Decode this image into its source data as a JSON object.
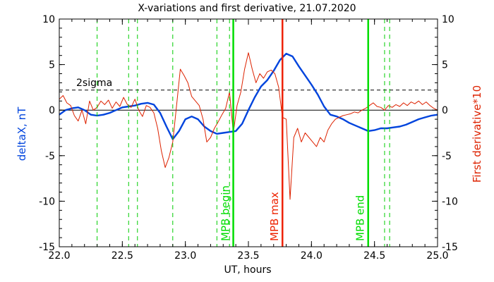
{
  "chart_data": {
    "type": "line",
    "title": "X-variations and first derivative, 21.07.2020",
    "xlabel": "UT, hours",
    "ylabel_left": "deltaX, nT",
    "ylabel_right": "First derivative*10",
    "xlim": [
      22.0,
      25.0
    ],
    "ylim": [
      -15,
      10
    ],
    "x_ticks": [
      22.0,
      22.5,
      23.0,
      23.5,
      24.0,
      24.5,
      25.0
    ],
    "x_tick_labels": [
      "22.0",
      "22.5",
      "23.0",
      "23.5",
      "24.0",
      "24.5",
      "25.0"
    ],
    "y_ticks": [
      -15,
      -10,
      -5,
      0,
      5,
      10
    ],
    "y_tick_labels": [
      "-15",
      "-10",
      "-5",
      "0",
      "5",
      "10"
    ],
    "zero_line": 0,
    "threshold": {
      "label": "2sigma",
      "value": 2.2
    },
    "dashed_markers": [
      22.3,
      22.55,
      22.62,
      22.9,
      23.25,
      23.35,
      24.58,
      24.62
    ],
    "markers": [
      {
        "label": "MPB begin",
        "x": 23.38,
        "color": "#00dd00"
      },
      {
        "label": "MPB max",
        "x": 23.77,
        "color": "#ee2200"
      },
      {
        "label": "MPB end",
        "x": 24.45,
        "color": "#00dd00"
      }
    ],
    "colors": {
      "deltaX": "#0044dd",
      "derivative": "#dd2200",
      "markers_dashed": "#00cc00"
    },
    "series": [
      {
        "name": "deltaX, nT",
        "axis": "left",
        "x": [
          22.0,
          22.05,
          22.1,
          22.15,
          22.2,
          22.25,
          22.3,
          22.35,
          22.4,
          22.45,
          22.5,
          22.55,
          22.6,
          22.65,
          22.7,
          22.75,
          22.8,
          22.85,
          22.9,
          22.95,
          23.0,
          23.05,
          23.1,
          23.15,
          23.2,
          23.25,
          23.3,
          23.35,
          23.4,
          23.45,
          23.5,
          23.55,
          23.6,
          23.65,
          23.7,
          23.75,
          23.8,
          23.85,
          23.9,
          23.95,
          24.0,
          24.05,
          24.1,
          24.15,
          24.2,
          24.25,
          24.3,
          24.35,
          24.4,
          24.45,
          24.5,
          24.55,
          24.6,
          24.65,
          24.7,
          24.75,
          24.8,
          24.85,
          24.9,
          24.95,
          25.0
        ],
        "values": [
          -0.5,
          0.0,
          0.2,
          0.3,
          0.0,
          -0.5,
          -0.6,
          -0.5,
          -0.3,
          0.0,
          0.3,
          0.4,
          0.5,
          0.7,
          0.8,
          0.6,
          -0.3,
          -1.8,
          -3.2,
          -2.3,
          -1.0,
          -0.7,
          -1.0,
          -1.8,
          -2.3,
          -2.6,
          -2.5,
          -2.4,
          -2.3,
          -1.5,
          0.0,
          1.4,
          2.6,
          3.3,
          4.3,
          5.5,
          6.2,
          5.9,
          4.8,
          3.8,
          2.8,
          1.7,
          0.4,
          -0.5,
          -0.7,
          -1.0,
          -1.4,
          -1.7,
          -2.0,
          -2.3,
          -2.2,
          -2.0,
          -2.0,
          -1.9,
          -1.8,
          -1.6,
          -1.3,
          -1.0,
          -0.8,
          -0.6,
          -0.5
        ]
      },
      {
        "name": "First derivative*10",
        "axis": "right",
        "x": [
          22.0,
          22.03,
          22.06,
          22.09,
          22.12,
          22.15,
          22.18,
          22.21,
          22.24,
          22.27,
          22.3,
          22.33,
          22.36,
          22.39,
          22.42,
          22.45,
          22.48,
          22.51,
          22.54,
          22.57,
          22.6,
          22.63,
          22.66,
          22.69,
          22.72,
          22.75,
          22.78,
          22.81,
          22.84,
          22.87,
          22.9,
          22.93,
          22.96,
          22.99,
          23.02,
          23.05,
          23.08,
          23.11,
          23.14,
          23.17,
          23.2,
          23.23,
          23.26,
          23.29,
          23.32,
          23.35,
          23.38,
          23.41,
          23.44,
          23.47,
          23.5,
          23.53,
          23.56,
          23.59,
          23.62,
          23.65,
          23.68,
          23.71,
          23.74,
          23.77,
          23.8,
          23.83,
          23.86,
          23.89,
          23.92,
          23.95,
          23.98,
          24.01,
          24.04,
          24.07,
          24.1,
          24.13,
          24.16,
          24.19,
          24.22,
          24.25,
          24.28,
          24.31,
          24.34,
          24.37,
          24.4,
          24.43,
          24.46,
          24.49,
          24.52,
          24.55,
          24.58,
          24.61,
          24.64,
          24.67,
          24.7,
          24.73,
          24.76,
          24.79,
          24.82,
          24.85,
          24.88,
          24.91,
          24.94,
          24.97,
          25.0
        ],
        "values": [
          1.2,
          1.6,
          0.8,
          0.5,
          -0.6,
          -1.2,
          0.0,
          -1.5,
          1.0,
          0.0,
          0.3,
          1.0,
          0.6,
          1.1,
          0.2,
          0.9,
          0.4,
          1.4,
          0.6,
          0.3,
          1.2,
          0.0,
          -0.7,
          0.5,
          0.3,
          -0.3,
          -2.0,
          -4.5,
          -6.3,
          -5.2,
          -3.5,
          0.5,
          4.5,
          3.8,
          3.0,
          1.5,
          1.0,
          0.5,
          -1.0,
          -3.5,
          -3.0,
          -2.0,
          -1.3,
          -0.5,
          0.2,
          2.0,
          -2.5,
          0.5,
          2.0,
          4.5,
          6.3,
          4.5,
          3.0,
          4.0,
          3.5,
          4.2,
          4.4,
          4.0,
          2.5,
          -0.8,
          -1.0,
          -9.8,
          -3.0,
          -2.0,
          -3.5,
          -2.5,
          -3.0,
          -3.5,
          -4.0,
          -3.0,
          -3.5,
          -2.2,
          -1.5,
          -1.0,
          -0.8,
          -0.6,
          -0.5,
          -0.4,
          -0.2,
          -0.3,
          0.0,
          0.2,
          0.5,
          0.8,
          0.4,
          0.3,
          0.0,
          0.5,
          0.3,
          0.6,
          0.4,
          0.8,
          0.5,
          0.9,
          0.7,
          1.0,
          0.6,
          0.9,
          0.5,
          0.2,
          0.0
        ]
      }
    ]
  }
}
